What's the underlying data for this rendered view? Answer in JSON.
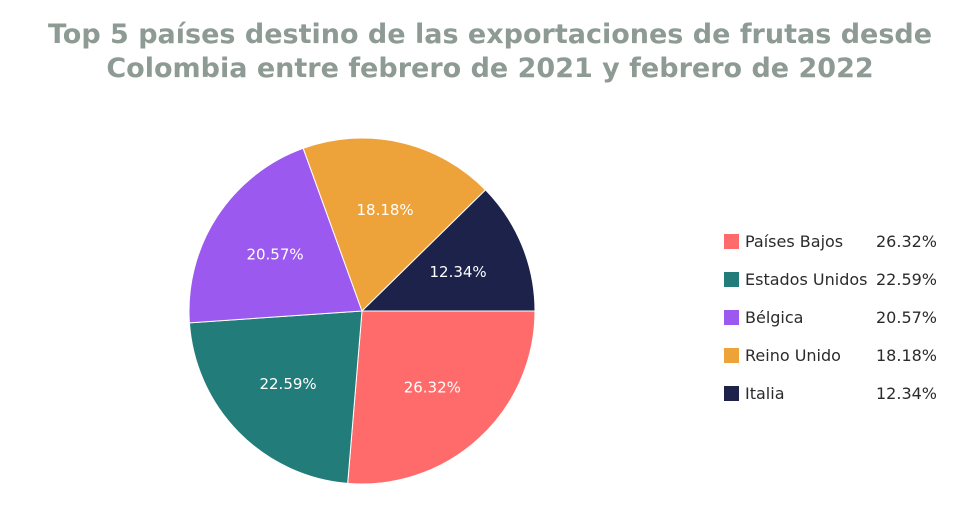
{
  "title_lines": [
    "Top 5 países destino de las exportaciones de frutas desde",
    "Colombia entre febrero de 2021 y febrero de 2022"
  ],
  "chart_data": {
    "type": "pie",
    "title": "Top 5 países destino de las exportaciones de frutas desde Colombia entre febrero de 2021 y febrero de 2022",
    "legend_position": "right",
    "slices": [
      {
        "label": "Países Bajos",
        "value": 26.32,
        "text": "26.32%",
        "color": "#ff6b6b",
        "text_color": "#ffffff"
      },
      {
        "label": "Estados Unidos",
        "value": 22.59,
        "text": "22.59%",
        "color": "#227c7a",
        "text_color": "#ffffff"
      },
      {
        "label": "Bélgica",
        "value": 20.57,
        "text": "20.57%",
        "color": "#9b59f0",
        "text_color": "#ffffff"
      },
      {
        "label": "Reino Unido",
        "value": 18.18,
        "text": "18.18%",
        "color": "#eea23a",
        "text_color": "#ffffff"
      },
      {
        "label": "Italia",
        "value": 12.34,
        "text": "12.34%",
        "color": "#1d224a",
        "text_color": "#ffffff"
      }
    ]
  }
}
